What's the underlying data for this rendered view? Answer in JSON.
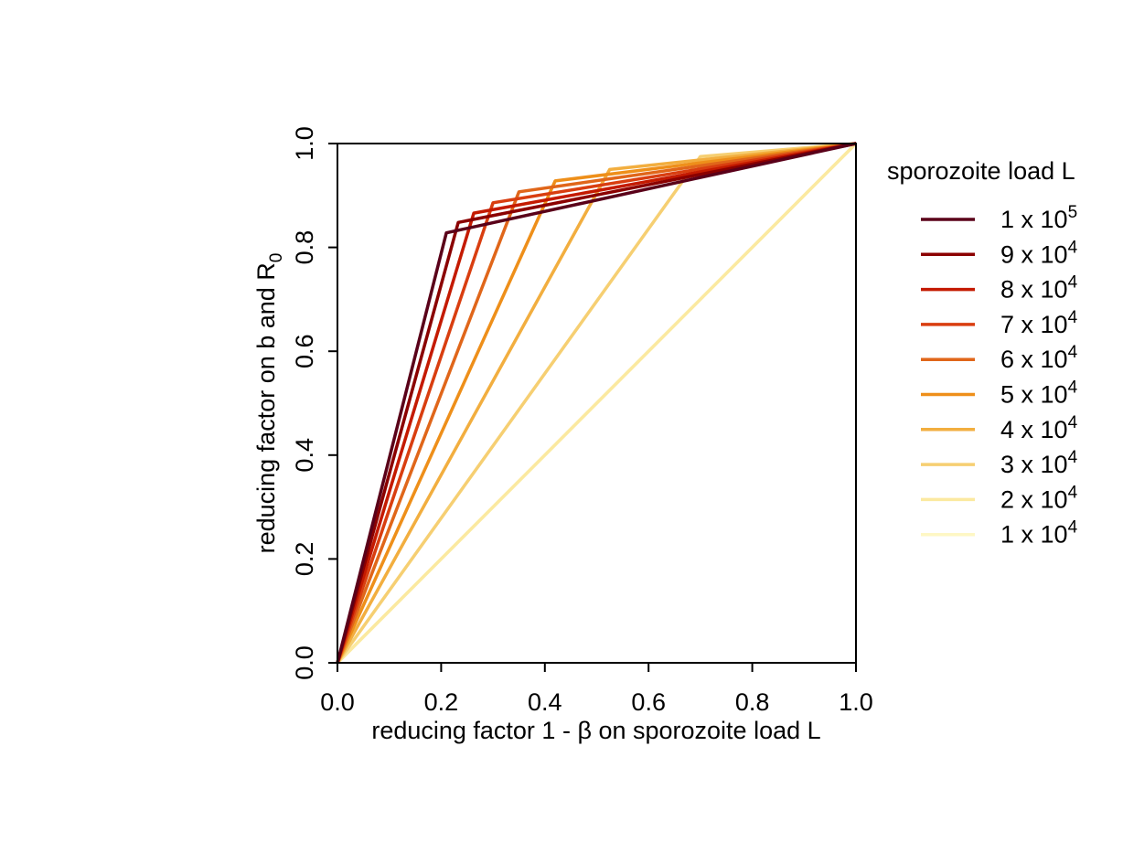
{
  "chart_data": {
    "type": "line",
    "xlabel": "reducing factor 1 - β on sporozoite load L",
    "ylabel_main": "reducing factor on b and R",
    "ylabel_sub": "0",
    "xlim": [
      0,
      1
    ],
    "ylim": [
      0,
      1
    ],
    "xticks": [
      "0.0",
      "0.2",
      "0.4",
      "0.6",
      "0.8",
      "1.0"
    ],
    "yticks": [
      "0.0",
      "0.2",
      "0.4",
      "0.6",
      "0.8",
      "1.0"
    ],
    "grid": false,
    "legend": {
      "title": "sporozoite load L",
      "placement": "right"
    },
    "series": [
      {
        "name": "1 x 10",
        "exp": "5",
        "color": "#5a0019",
        "points": [
          [
            0,
            0
          ],
          [
            0.21,
            0.828
          ],
          [
            1,
            1
          ]
        ]
      },
      {
        "name": "9 x 10",
        "exp": "4",
        "color": "#8b0000",
        "points": [
          [
            0,
            0
          ],
          [
            0.233,
            0.848
          ],
          [
            1,
            1
          ]
        ]
      },
      {
        "name": "8 x 10",
        "exp": "4",
        "color": "#c41a00",
        "points": [
          [
            0,
            0
          ],
          [
            0.263,
            0.866
          ],
          [
            1,
            1
          ]
        ]
      },
      {
        "name": "7 x 10",
        "exp": "4",
        "color": "#d93e10",
        "points": [
          [
            0,
            0
          ],
          [
            0.3,
            0.886
          ],
          [
            1,
            1
          ]
        ]
      },
      {
        "name": "6 x 10",
        "exp": "4",
        "color": "#e0661a",
        "points": [
          [
            0,
            0
          ],
          [
            0.35,
            0.907
          ],
          [
            1,
            1
          ]
        ]
      },
      {
        "name": "5 x 10",
        "exp": "4",
        "color": "#ee8f1a",
        "points": [
          [
            0,
            0
          ],
          [
            0.42,
            0.928
          ],
          [
            1,
            1
          ]
        ]
      },
      {
        "name": "4 x 10",
        "exp": "4",
        "color": "#f2ae3f",
        "points": [
          [
            0,
            0
          ],
          [
            0.525,
            0.95
          ],
          [
            1,
            1
          ]
        ]
      },
      {
        "name": "3 x 10",
        "exp": "4",
        "color": "#f6cf72",
        "points": [
          [
            0,
            0
          ],
          [
            0.7,
            0.975
          ],
          [
            1,
            1
          ]
        ]
      },
      {
        "name": "2 x 10",
        "exp": "4",
        "color": "#fbe9a0",
        "points": [
          [
            0,
            0
          ],
          [
            1,
            1
          ]
        ]
      },
      {
        "name": "1 x 10",
        "exp": "4",
        "color": "#fef7c4",
        "points": [
          [
            0,
            0
          ],
          [
            1,
            1
          ]
        ]
      }
    ]
  }
}
